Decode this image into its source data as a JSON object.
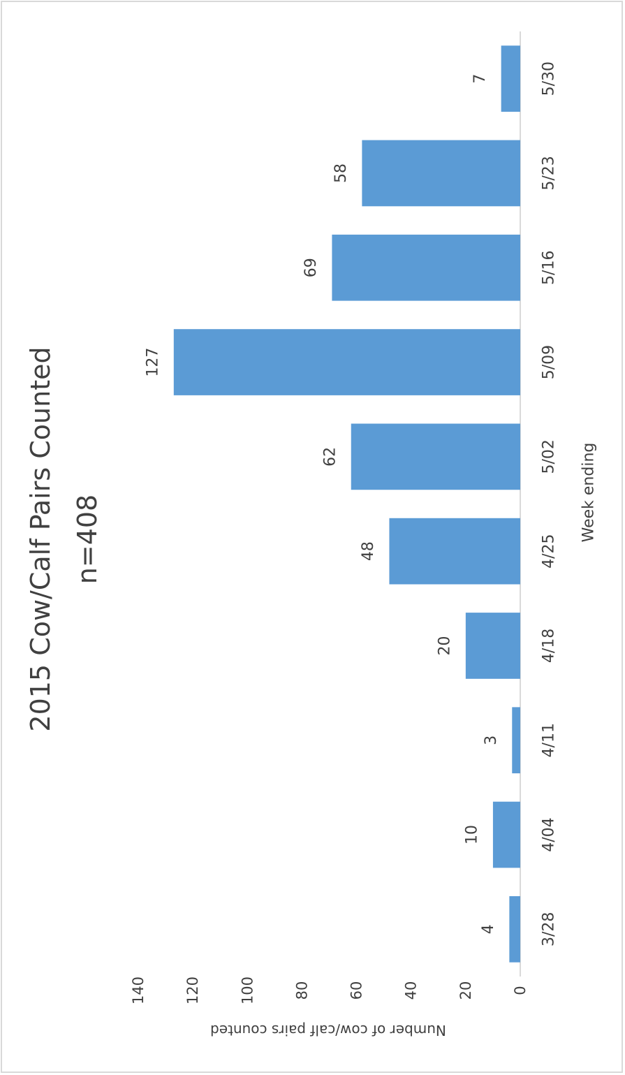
{
  "chart_data": {
    "type": "bar",
    "orientation": "rotated-90-clockwise",
    "title": "2015 Cow/Calf Pairs Counted",
    "subtitle": "n=408",
    "xlabel": "Week ending",
    "ylabel": "Number of cow/calf pairs counted",
    "categories": [
      "3/28",
      "4/04",
      "4/11",
      "4/18",
      "4/25",
      "5/02",
      "5/09",
      "5/16",
      "5/23",
      "5/30"
    ],
    "values": [
      4,
      10,
      3,
      20,
      48,
      62,
      127,
      69,
      58,
      7
    ],
    "data_labels": [
      "4",
      "10",
      "3",
      "20",
      "48",
      "62",
      "127",
      "69",
      "58",
      "7"
    ],
    "yticks": [
      "0",
      "20",
      "40",
      "60",
      "80",
      "100",
      "120",
      "140"
    ],
    "ylim": [
      0,
      140
    ],
    "grid": false,
    "legend": "none",
    "bar_color": "#5b9bd5",
    "axis_color": "#d9d9d9",
    "text_color": "#404040"
  }
}
